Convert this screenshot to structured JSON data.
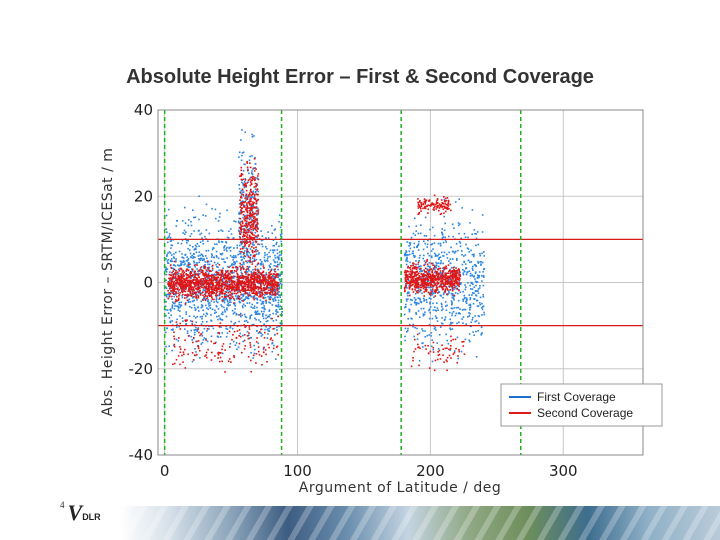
{
  "slide": {
    "title": "Absolute Height Error – First & Second Coverage",
    "logo_text": "DLR",
    "logo_mark": "V",
    "logo_number": "4"
  },
  "chart_data": {
    "type": "scatter",
    "title": "Absolute Height Error – First & Second Coverage",
    "xlabel": "Argument of Latitude / deg",
    "ylabel": "Abs. Height Error – SRTM/ICESat / m",
    "xlim": [
      -5,
      360
    ],
    "ylim": [
      -40,
      40
    ],
    "xticks": [
      0,
      100,
      200,
      300
    ],
    "yticks": [
      -40,
      -20,
      0,
      20,
      40
    ],
    "grid": true,
    "reference_lines": {
      "horizontal_red": [
        10,
        -10
      ],
      "vertical_green_dashed": [
        0,
        88,
        178,
        268
      ]
    },
    "legend": {
      "placement": "bottom-right",
      "entries": [
        {
          "label": "First Coverage",
          "color": "#1e6fd0"
        },
        {
          "label": "Second Coverage",
          "color": "#dd1a1a"
        }
      ]
    },
    "series": [
      {
        "name": "First Coverage",
        "color": "#2a86e0",
        "clusters": [
          {
            "x_range": [
              0,
              88
            ],
            "y_mean": 0,
            "y_spread": 14,
            "count": 1400
          },
          {
            "x_range": [
              180,
              240
            ],
            "y_mean": 0,
            "y_spread": 14,
            "count": 750
          },
          {
            "x_range": [
              55,
              70
            ],
            "y_mean": 18,
            "y_spread": 16,
            "count": 200
          }
        ]
      },
      {
        "name": "Second Coverage",
        "color": "#e01515",
        "clusters": [
          {
            "x_range": [
              2,
              85
            ],
            "y_mean": 0,
            "y_spread": 3.5,
            "count": 1300
          },
          {
            "x_range": [
              180,
              222
            ],
            "y_mean": 1,
            "y_spread": 3.2,
            "count": 600
          },
          {
            "x_range": [
              56,
              70
            ],
            "y_mean": 16,
            "y_spread": 12,
            "count": 350
          },
          {
            "x_range": [
              190,
              215
            ],
            "y_mean": 18,
            "y_spread": 1.8,
            "count": 120
          },
          {
            "x_range": [
              5,
              85
            ],
            "y_mean": -14,
            "y_spread": 6,
            "count": 150
          },
          {
            "x_range": [
              185,
              225
            ],
            "y_mean": -16,
            "y_spread": 4,
            "count": 60
          }
        ]
      }
    ]
  }
}
